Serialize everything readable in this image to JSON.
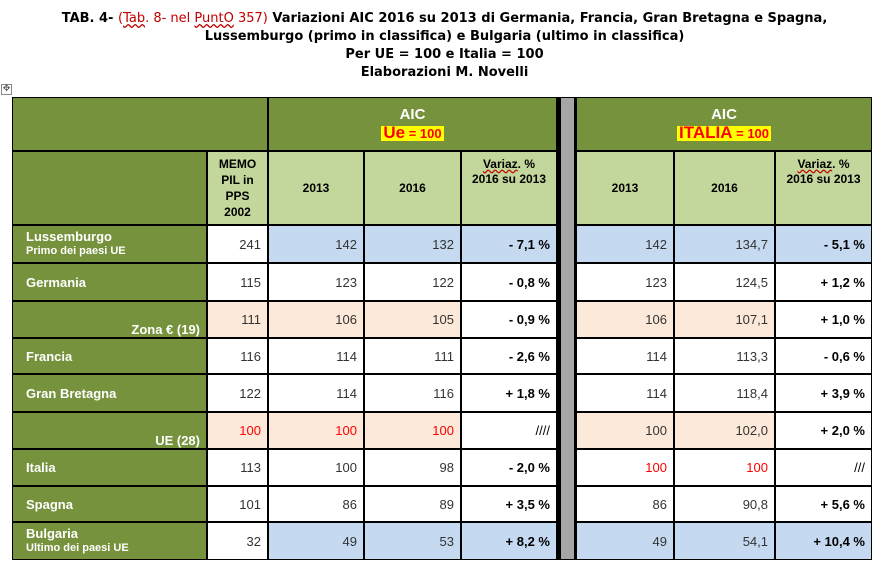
{
  "title": {
    "prefix": "TAB. 4-",
    "note_open": "(",
    "note_tab": "Tab",
    "note_mid": ". 8- nel ",
    "note_punto": "PuntO",
    "note_end": " 357)",
    "line1_rest": "Variazioni AIC 2016 su 2013 di Germania, Francia, Gran Bretagna e Spagna,",
    "line2": "Lussemburgo (primo in classifica) e Bulgaria (ultimo in classifica)",
    "line3": "Per UE = 100 e Italia = 100",
    "line4": "Elaborazioni M. Novelli"
  },
  "handle_glyph": "✥",
  "header": {
    "ue": {
      "aic": "AIC",
      "name": "Ue",
      "eq": " = 100"
    },
    "it": {
      "aic": "AIC",
      "name": "ITALIA",
      "eq": " = 100"
    },
    "memo": [
      "MEMO",
      "PIL in",
      "PPS",
      "2002"
    ],
    "y2013": "2013",
    "y2016": "2016",
    "var_word": "Variaz",
    "var_rest": ". %",
    "var_line2": "2016 su 2013"
  },
  "rows": [
    {
      "label": "Lussemburgo",
      "sub": "Primo dei paesi UE",
      "memo": "241",
      "ue2013": "142",
      "ue2016": "132",
      "ue_var": "- 7,1 %",
      "it2013": "142",
      "it2016": "134,7",
      "it_var": "- 5,1 %"
    },
    {
      "label": "Germania",
      "sub": "",
      "memo": "115",
      "ue2013": "123",
      "ue2016": "122",
      "ue_var": "- 0,8 %",
      "it2013": "123",
      "it2016": "124,5",
      "it_var": "+ 1,2 %"
    },
    {
      "label": "Zona € (19)",
      "sub": "",
      "memo": "111",
      "ue2013": "106",
      "ue2016": "105",
      "ue_var": "- 0,9 %",
      "it2013": "106",
      "it2016": "107,1",
      "it_var": "+ 1,0 %"
    },
    {
      "label": "Francia",
      "sub": "",
      "memo": "116",
      "ue2013": "114",
      "ue2016": "111",
      "ue_var": "- 2,6 %",
      "it2013": "114",
      "it2016": "113,3",
      "it_var": "- 0,6 %"
    },
    {
      "label": "Gran Bretagna",
      "sub": "",
      "memo": "122",
      "ue2013": "114",
      "ue2016": "116",
      "ue_var": "+ 1,8 %",
      "it2013": "114",
      "it2016": "118,4",
      "it_var": "+ 3,9 %"
    },
    {
      "label": "UE (28)",
      "sub": "",
      "memo": "100",
      "ue2013": "100",
      "ue2016": "100",
      "ue_var": "////",
      "it2013": "100",
      "it2016": "102,0",
      "it_var": "+ 2,0 %"
    },
    {
      "label": "Italia",
      "sub": "",
      "memo": "113",
      "ue2013": "100",
      "ue2016": "98",
      "ue_var": "- 2,0 %",
      "it2013": "100",
      "it2016": "100",
      "it_var": "///"
    },
    {
      "label": "Spagna",
      "sub": "",
      "memo": "101",
      "ue2013": "86",
      "ue2016": "89",
      "ue_var": "+ 3,5 %",
      "it2013": "86",
      "it2016": "90,8",
      "it_var": "+ 5,6 %"
    },
    {
      "label": "Bulgaria",
      "sub": "Ultimo dei paesi UE",
      "memo": "32",
      "ue2013": "49",
      "ue2016": "53",
      "ue_var": "+ 8,2 %",
      "it2013": "49",
      "it2016": "54,1",
      "it_var": "+ 10,4 %"
    }
  ],
  "colors": {
    "header_green": "#76923c",
    "header_light_green": "#c3d69b",
    "row_blue": "#c5d9f1",
    "row_peach": "#fde9d9",
    "highlight_yellow": "#ffff00",
    "highlight_red": "#ff0000"
  }
}
